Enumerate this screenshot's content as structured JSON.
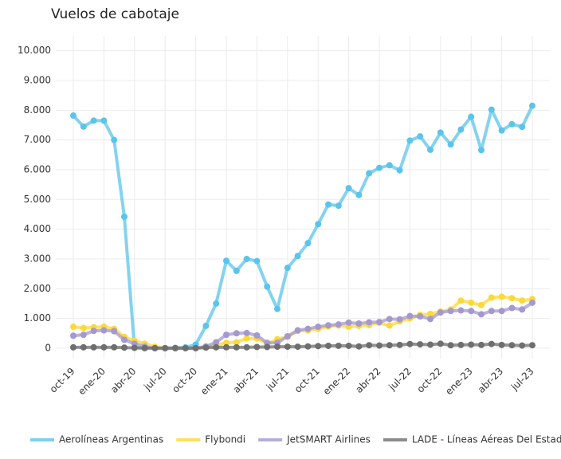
{
  "chart_data": {
    "type": "line",
    "title": "Vuelos de cabotaje",
    "categories": [
      "oct-19",
      null,
      null,
      "ene-20",
      null,
      null,
      "abr-20",
      null,
      null,
      "jul-20",
      null,
      null,
      "oct-20",
      null,
      null,
      "ene-21",
      null,
      null,
      "abr-21",
      null,
      null,
      "jul-21",
      null,
      null,
      "oct-21",
      null,
      null,
      "ene-22",
      null,
      null,
      "abr-22",
      null,
      null,
      "jul-22",
      null,
      null,
      "oct-22",
      null,
      null,
      "ene-23",
      null,
      null,
      "abr-23",
      null,
      null,
      "jul-23"
    ],
    "series": [
      {
        "name": "Aerolíneas Argentinas",
        "color": "#5bc4ea",
        "values": [
          7820,
          7450,
          7650,
          7650,
          7000,
          4420,
          20,
          10,
          10,
          0,
          10,
          30,
          120,
          750,
          1500,
          2940,
          2600,
          3000,
          2930,
          2070,
          1320,
          2700,
          3100,
          3530,
          4170,
          4830,
          4790,
          5380,
          5150,
          5880,
          6060,
          6150,
          5980,
          6980,
          7120,
          6670,
          7250,
          6850,
          7350,
          7780,
          6660,
          8020,
          7320,
          7530,
          7440,
          8150
        ]
      },
      {
        "name": "Flybondi",
        "color": "#fcd83a",
        "values": [
          720,
          680,
          700,
          720,
          650,
          380,
          250,
          150,
          50,
          0,
          0,
          0,
          0,
          40,
          100,
          180,
          200,
          330,
          330,
          150,
          300,
          380,
          580,
          600,
          650,
          730,
          760,
          720,
          750,
          780,
          850,
          760,
          900,
          1000,
          1120,
          1150,
          1230,
          1300,
          1600,
          1530,
          1450,
          1700,
          1730,
          1680,
          1600,
          1650
        ]
      },
      {
        "name": "JetSMART Airlines",
        "color": "#a598cf",
        "values": [
          420,
          450,
          580,
          600,
          570,
          280,
          150,
          50,
          0,
          0,
          0,
          0,
          0,
          60,
          200,
          450,
          500,
          510,
          430,
          180,
          180,
          400,
          600,
          650,
          720,
          770,
          800,
          860,
          830,
          870,
          880,
          980,
          970,
          1080,
          1070,
          980,
          1200,
          1250,
          1270,
          1250,
          1140,
          1250,
          1250,
          1350,
          1300,
          1530
        ]
      },
      {
        "name": "LADE - Líneas Aéreas Del Estado",
        "color": "#6e6e6e",
        "values": [
          30,
          30,
          30,
          30,
          30,
          20,
          10,
          0,
          0,
          0,
          0,
          0,
          0,
          20,
          30,
          30,
          30,
          30,
          40,
          40,
          50,
          50,
          50,
          60,
          70,
          80,
          80,
          80,
          60,
          100,
          90,
          100,
          110,
          140,
          130,
          120,
          150,
          100,
          110,
          120,
          110,
          140,
          110,
          100,
          90,
          100
        ]
      }
    ],
    "ylim": [
      -350,
      10500
    ],
    "yticks": [
      0,
      {
        "value": 1000,
        "label": "1.000"
      },
      {
        "value": 2000,
        "label": "2.000"
      },
      {
        "value": 3000,
        "label": "3.000"
      },
      {
        "value": 4000,
        "label": "4.000"
      },
      {
        "value": 5000,
        "label": "5.000"
      },
      {
        "value": 6000,
        "label": "6.000"
      },
      {
        "value": 7000,
        "label": "7.000"
      },
      {
        "value": 8000,
        "label": "8.000"
      },
      {
        "value": 9000,
        "label": "9.000"
      },
      {
        "value": 10000,
        "label": "10.000"
      }
    ],
    "grid": true,
    "legend": "bottom"
  }
}
